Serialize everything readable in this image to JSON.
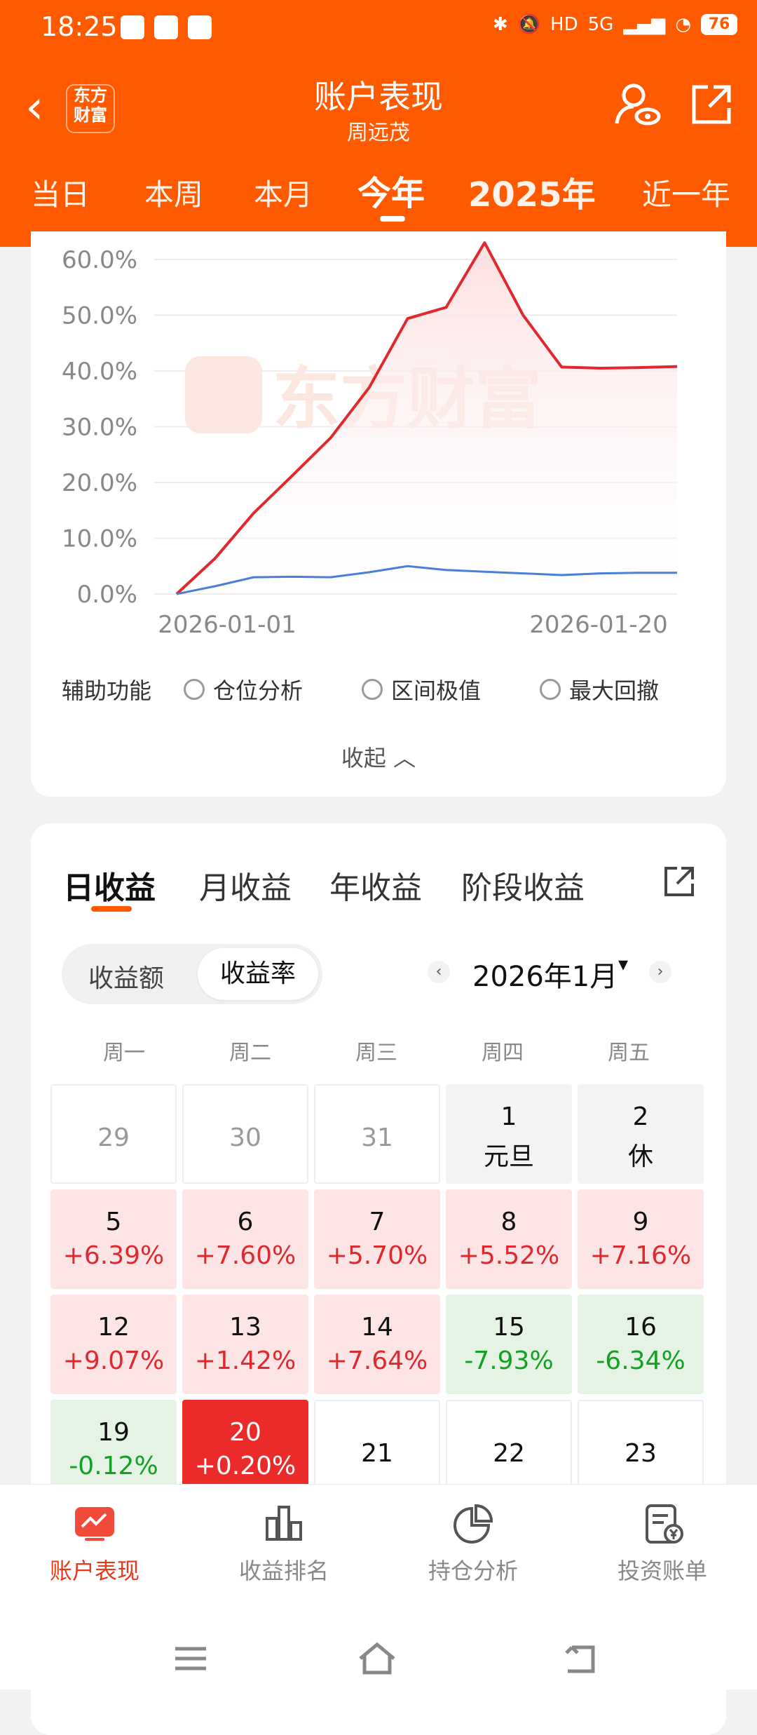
{
  "status_bar": {
    "time": "18:25",
    "network": "5G",
    "battery": "76"
  },
  "header": {
    "title": "账户表现",
    "subtitle": "周远茂",
    "logo_text_line1": "东方",
    "logo_text_line2": "财富"
  },
  "period_tabs": [
    "当日",
    "本周",
    "本月",
    "今年",
    "2025年",
    "近一年"
  ],
  "period_active": "今年",
  "chart_data": {
    "type": "line",
    "x": [
      "2026-01-01",
      "2026-01-02",
      "2026-01-05",
      "2026-01-06",
      "2026-01-07",
      "2026-01-08",
      "2026-01-09",
      "2026-01-12",
      "2026-01-13",
      "2026-01-14",
      "2026-01-15",
      "2026-01-16",
      "2026-01-19",
      "2026-01-20"
    ],
    "xticks": [
      "2026-01-01",
      "2026-01-20"
    ],
    "yticks": [
      "0.0%",
      "10.0%",
      "20.0%",
      "30.0%",
      "40.0%",
      "50.0%",
      "60.0%"
    ],
    "ylim": [
      0,
      62
    ],
    "series": [
      {
        "color": "#e0282e",
        "values": [
          0,
          6.4,
          14.5,
          21.2,
          28.0,
          37.0,
          49.4,
          51.4,
          63.0,
          50.0,
          40.7,
          40.5,
          40.6,
          40.8
        ]
      },
      {
        "color": "#4a7fd9",
        "values": [
          0,
          1.4,
          3.0,
          3.1,
          3.0,
          3.9,
          5.0,
          4.3,
          4.0,
          3.7,
          3.4,
          3.7,
          3.8,
          3.8
        ]
      }
    ],
    "watermark": "东方财富"
  },
  "aux": {
    "label": "辅助功能",
    "options": [
      "仓位分析",
      "区间极值",
      "最大回撤"
    ],
    "collapse": "收起"
  },
  "returns_tabs": [
    "日收益",
    "月收益",
    "年收益",
    "阶段收益"
  ],
  "segment": {
    "amount": "收益额",
    "rate": "收益率"
  },
  "month": "2026年1月",
  "weekdays": [
    "周一",
    "周二",
    "周三",
    "周四",
    "周五"
  ],
  "calendar": [
    {
      "day": "29",
      "val": ""
    },
    {
      "day": "30",
      "val": ""
    },
    {
      "day": "31",
      "val": ""
    },
    {
      "day": "1",
      "val": "元旦"
    },
    {
      "day": "2",
      "val": "休"
    },
    {
      "day": "5",
      "val": "+6.39%"
    },
    {
      "day": "6",
      "val": "+7.60%"
    },
    {
      "day": "7",
      "val": "+5.70%"
    },
    {
      "day": "8",
      "val": "+5.52%"
    },
    {
      "day": "9",
      "val": "+7.16%"
    },
    {
      "day": "12",
      "val": "+9.07%"
    },
    {
      "day": "13",
      "val": "+1.42%"
    },
    {
      "day": "14",
      "val": "+7.64%"
    },
    {
      "day": "15",
      "val": "-7.93%"
    },
    {
      "day": "16",
      "val": "-6.34%"
    },
    {
      "day": "19",
      "val": "-0.12%"
    },
    {
      "day": "20",
      "val": "+0.20%"
    },
    {
      "day": "21",
      "val": ""
    },
    {
      "day": "22",
      "val": ""
    },
    {
      "day": "23",
      "val": ""
    }
  ],
  "bottom_nav": [
    "账户表现",
    "收益排名",
    "持仓分析",
    "投资账单"
  ]
}
